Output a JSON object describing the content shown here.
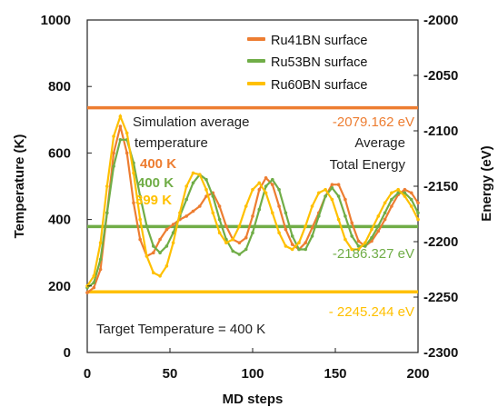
{
  "chart_data": {
    "type": "line",
    "xlabel": "MD steps",
    "ylabel": "Temperature (K)",
    "y2label": "Energy (eV)",
    "xlim": [
      0,
      200
    ],
    "ylim": [
      0,
      1000
    ],
    "y2lim": [
      -2300,
      -2000
    ],
    "x_ticks": [
      "0",
      "50",
      "100",
      "150",
      "200"
    ],
    "y_ticks": [
      "0",
      "200",
      "400",
      "600",
      "800",
      "1000"
    ],
    "y2_ticks": [
      "-2300",
      "-2250",
      "-2200",
      "-2150",
      "-2100",
      "-2050",
      "-2000"
    ],
    "grid": false,
    "legend_position": "top-right",
    "series": [
      {
        "name": "Ru41BN surface",
        "color": "#ED7D31",
        "points": [
          [
            0,
            180
          ],
          [
            4,
            195
          ],
          [
            8,
            250
          ],
          [
            12,
            420
          ],
          [
            16,
            600
          ],
          [
            20,
            680
          ],
          [
            24,
            600
          ],
          [
            28,
            450
          ],
          [
            32,
            340
          ],
          [
            36,
            290
          ],
          [
            40,
            300
          ],
          [
            44,
            340
          ],
          [
            48,
            370
          ],
          [
            52,
            385
          ],
          [
            56,
            400
          ],
          [
            60,
            410
          ],
          [
            64,
            425
          ],
          [
            68,
            440
          ],
          [
            72,
            470
          ],
          [
            76,
            480
          ],
          [
            80,
            440
          ],
          [
            84,
            380
          ],
          [
            88,
            340
          ],
          [
            92,
            330
          ],
          [
            96,
            345
          ],
          [
            100,
            410
          ],
          [
            104,
            490
          ],
          [
            108,
            525
          ],
          [
            112,
            505
          ],
          [
            116,
            440
          ],
          [
            120,
            370
          ],
          [
            124,
            325
          ],
          [
            128,
            310
          ],
          [
            132,
            330
          ],
          [
            136,
            375
          ],
          [
            140,
            420
          ],
          [
            144,
            470
          ],
          [
            148,
            505
          ],
          [
            152,
            505
          ],
          [
            156,
            460
          ],
          [
            160,
            390
          ],
          [
            164,
            335
          ],
          [
            168,
            320
          ],
          [
            172,
            335
          ],
          [
            176,
            365
          ],
          [
            180,
            400
          ],
          [
            184,
            440
          ],
          [
            188,
            475
          ],
          [
            192,
            490
          ],
          [
            196,
            480
          ],
          [
            200,
            450
          ]
        ]
      },
      {
        "name": "Ru53BN surface",
        "color": "#70AD47",
        "points": [
          [
            0,
            195
          ],
          [
            4,
            210
          ],
          [
            8,
            280
          ],
          [
            12,
            420
          ],
          [
            16,
            560
          ],
          [
            20,
            640
          ],
          [
            24,
            640
          ],
          [
            28,
            570
          ],
          [
            32,
            470
          ],
          [
            36,
            380
          ],
          [
            40,
            320
          ],
          [
            44,
            300
          ],
          [
            48,
            320
          ],
          [
            52,
            360
          ],
          [
            56,
            410
          ],
          [
            60,
            460
          ],
          [
            64,
            510
          ],
          [
            68,
            535
          ],
          [
            72,
            520
          ],
          [
            76,
            470
          ],
          [
            80,
            400
          ],
          [
            84,
            340
          ],
          [
            88,
            305
          ],
          [
            92,
            295
          ],
          [
            96,
            310
          ],
          [
            100,
            360
          ],
          [
            104,
            430
          ],
          [
            108,
            500
          ],
          [
            112,
            520
          ],
          [
            116,
            490
          ],
          [
            120,
            420
          ],
          [
            124,
            350
          ],
          [
            128,
            310
          ],
          [
            132,
            310
          ],
          [
            136,
            350
          ],
          [
            140,
            410
          ],
          [
            144,
            470
          ],
          [
            148,
            495
          ],
          [
            152,
            470
          ],
          [
            156,
            410
          ],
          [
            160,
            350
          ],
          [
            164,
            320
          ],
          [
            168,
            320
          ],
          [
            172,
            345
          ],
          [
            176,
            380
          ],
          [
            180,
            420
          ],
          [
            184,
            460
          ],
          [
            188,
            480
          ],
          [
            192,
            480
          ],
          [
            196,
            460
          ],
          [
            200,
            420
          ]
        ]
      },
      {
        "name": "Ru60BN surface",
        "color": "#FFC000",
        "points": [
          [
            0,
            200
          ],
          [
            4,
            230
          ],
          [
            8,
            330
          ],
          [
            12,
            500
          ],
          [
            16,
            650
          ],
          [
            20,
            710
          ],
          [
            24,
            660
          ],
          [
            28,
            540
          ],
          [
            32,
            400
          ],
          [
            36,
            290
          ],
          [
            40,
            240
          ],
          [
            44,
            230
          ],
          [
            48,
            260
          ],
          [
            52,
            330
          ],
          [
            56,
            420
          ],
          [
            60,
            500
          ],
          [
            64,
            540
          ],
          [
            68,
            535
          ],
          [
            72,
            490
          ],
          [
            76,
            420
          ],
          [
            80,
            360
          ],
          [
            84,
            330
          ],
          [
            88,
            340
          ],
          [
            92,
            380
          ],
          [
            96,
            440
          ],
          [
            100,
            490
          ],
          [
            104,
            510
          ],
          [
            108,
            480
          ],
          [
            112,
            420
          ],
          [
            116,
            360
          ],
          [
            120,
            320
          ],
          [
            124,
            310
          ],
          [
            128,
            330
          ],
          [
            132,
            380
          ],
          [
            136,
            440
          ],
          [
            140,
            480
          ],
          [
            144,
            490
          ],
          [
            148,
            460
          ],
          [
            152,
            400
          ],
          [
            156,
            340
          ],
          [
            160,
            310
          ],
          [
            164,
            310
          ],
          [
            168,
            330
          ],
          [
            172,
            370
          ],
          [
            176,
            410
          ],
          [
            180,
            450
          ],
          [
            184,
            480
          ],
          [
            188,
            490
          ],
          [
            192,
            470
          ],
          [
            196,
            440
          ],
          [
            200,
            400
          ]
        ]
      }
    ],
    "reference_lines": [
      {
        "color": "#ED7D31",
        "energy": -2079.162,
        "label": "-2079.162 eV"
      },
      {
        "color": "#70AD47",
        "energy": -2186.327,
        "label": "-2186.327 eV"
      },
      {
        "color": "#FFC000",
        "energy": -2245.244,
        "label": "- 2245.244 eV"
      }
    ],
    "annotations": {
      "sim_avg_line1": "Simulation average",
      "sim_avg_line2": "temperature",
      "temp_41": "400 K",
      "temp_53": "400 K",
      "temp_60": "399 K",
      "avg_energy_line1": "Average",
      "avg_energy_line2": "Total Energy",
      "target": "Target Temperature = 400 K"
    }
  }
}
